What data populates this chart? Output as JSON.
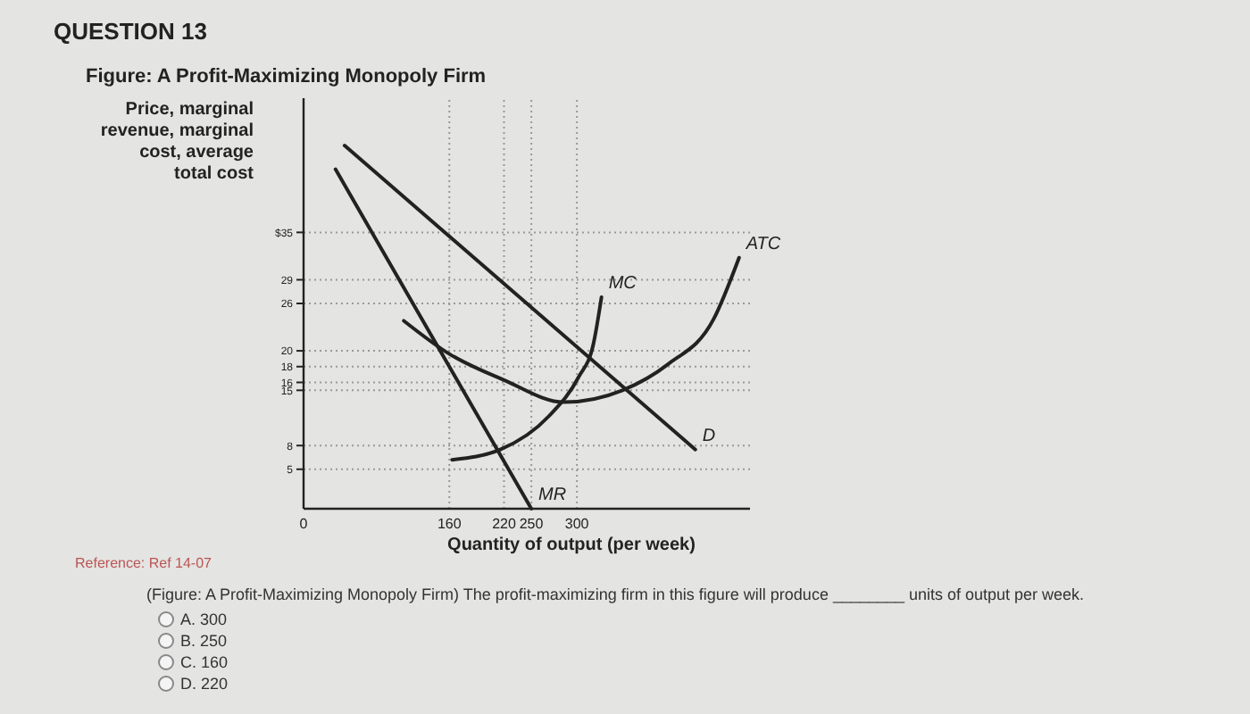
{
  "chart_data": {
    "type": "line",
    "title": "QUESTION 13",
    "subtitle": "Figure: A Profit-Maximizing Monopoly Firm",
    "ylabel": "Price, marginal\nrevenue, marginal\ncost, average\ntotal cost",
    "xlabel": "Quantity of output (per week)",
    "xlim": [
      0,
      490
    ],
    "xticks": [
      0,
      160,
      220,
      250,
      300
    ],
    "ylim": [
      0,
      52
    ],
    "yticks": [
      {
        "value": 5,
        "label": "5"
      },
      {
        "value": 8,
        "label": "8"
      },
      {
        "value": 15,
        "label": "15"
      },
      {
        "value": 16,
        "label": "16"
      },
      {
        "value": 18,
        "label": "18"
      },
      {
        "value": 20,
        "label": "20"
      },
      {
        "value": 26,
        "label": "26"
      },
      {
        "value": 29,
        "label": "29"
      },
      {
        "value": 35,
        "label": "$35"
      }
    ],
    "grid": true,
    "marker": "none",
    "line_style": "solid",
    "series": [
      {
        "name": "D",
        "color": "#222222",
        "x": [
          45,
          430
        ],
        "values": [
          46,
          7.5
        ]
      },
      {
        "name": "MR",
        "color": "#222222",
        "x": [
          35,
          250
        ],
        "values": [
          43,
          0
        ]
      },
      {
        "name": "MC",
        "color": "#222222",
        "x": [
          163,
          216,
          269,
          302,
          318,
          327
        ],
        "values": [
          6.2,
          7.5,
          11.7,
          16.7,
          20.8,
          26.8
        ]
      },
      {
        "name": "ATC",
        "color": "#222222",
        "x": [
          110,
          160,
          220,
          286,
          350,
          400,
          450,
          478
        ],
        "values": [
          23.8,
          19.6,
          16.3,
          13.5,
          15,
          18.3,
          24,
          31.8
        ]
      }
    ],
    "annotations": [
      "Reference: Ref 14-07",
      "(Figure: A Profit-Maximizing Monopoly Firm) The profit-maximizing firm in this figure will produce ________ units of output per week.",
      "A. 300",
      "B. 250",
      "C. 160",
      "D. 220"
    ]
  }
}
